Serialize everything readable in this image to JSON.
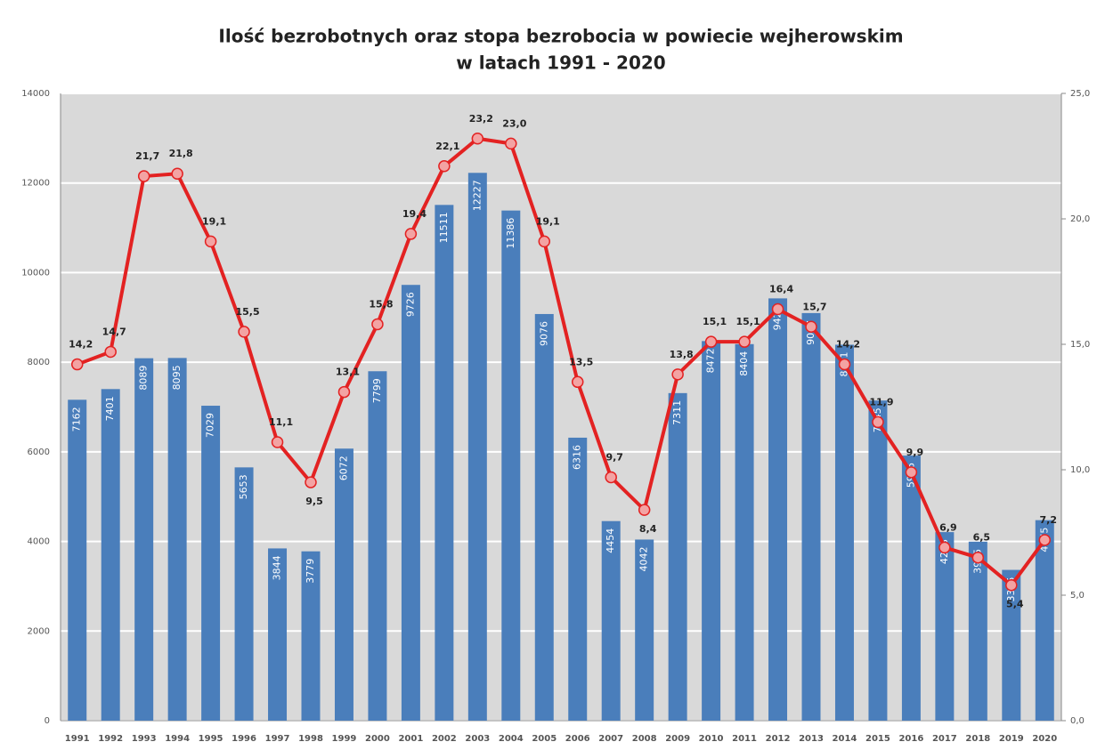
{
  "chart_data": {
    "type": "bar-line",
    "title": [
      "Ilość bezrobotnych oraz stopa bezrobocia w powiecie wejherowskim",
      "w latach 1991 - 2020"
    ],
    "categories": [
      "1991",
      "1992",
      "1993",
      "1994",
      "1995",
      "1996",
      "1997",
      "1998",
      "1999",
      "2000",
      "2001",
      "2002",
      "2003",
      "2004",
      "2005",
      "2006",
      "2007",
      "2008",
      "2009",
      "2010",
      "2011",
      "2012",
      "2013",
      "2014",
      "2015",
      "2016",
      "2017",
      "2018",
      "2019",
      "2020"
    ],
    "series": [
      {
        "type": "bar",
        "color": "#4a7ebb",
        "values": [
          7162,
          7401,
          8089,
          8095,
          7029,
          5653,
          3844,
          3779,
          6072,
          7799,
          9726,
          11511,
          12227,
          11386,
          9076,
          6316,
          4454,
          4042,
          7311,
          8472,
          8404,
          9425,
          9097,
          8391,
          7145,
          5916,
          4208,
          3995,
          3365,
          4475
        ]
      },
      {
        "type": "line",
        "color": "#e32222",
        "marker_color": "#f3a3a3",
        "axis": "y2",
        "values": [
          14.2,
          14.7,
          21.7,
          21.8,
          19.1,
          15.5,
          11.1,
          9.5,
          13.1,
          15.8,
          19.4,
          22.1,
          23.2,
          23.0,
          19.1,
          13.5,
          9.7,
          8.4,
          13.8,
          15.1,
          15.1,
          16.4,
          15.7,
          14.2,
          11.9,
          9.9,
          6.9,
          6.5,
          5.4,
          7.2
        ],
        "value_labels": [
          "14,2",
          "14,7",
          "21,7",
          "21,8",
          "19,1",
          "15,5",
          "11,1",
          "9,5",
          "13,1",
          "15,8",
          "19,4",
          "22,1",
          "23,2",
          "23,0",
          "19,1",
          "13,5",
          "9,7",
          "8,4",
          "13,8",
          "15,1",
          "15,1",
          "16,4",
          "15,7",
          "14,2",
          "11,9",
          "9,9",
          "6,9",
          "6,5",
          "5,4",
          "7,2"
        ]
      }
    ],
    "ylim": [
      0,
      14000
    ],
    "yticks": [
      0,
      2000,
      4000,
      6000,
      8000,
      10000,
      12000,
      14000
    ],
    "y2lim": [
      0,
      25
    ],
    "y2ticks": [
      {
        "value": 0,
        "label": "0,0"
      },
      {
        "value": 5,
        "label": "5,0"
      },
      {
        "value": 10,
        "label": "10,0"
      },
      {
        "value": 15,
        "label": "15,0"
      },
      {
        "value": 20,
        "label": "20,0"
      },
      {
        "value": 25,
        "label": "25,0"
      }
    ],
    "grid": true
  }
}
